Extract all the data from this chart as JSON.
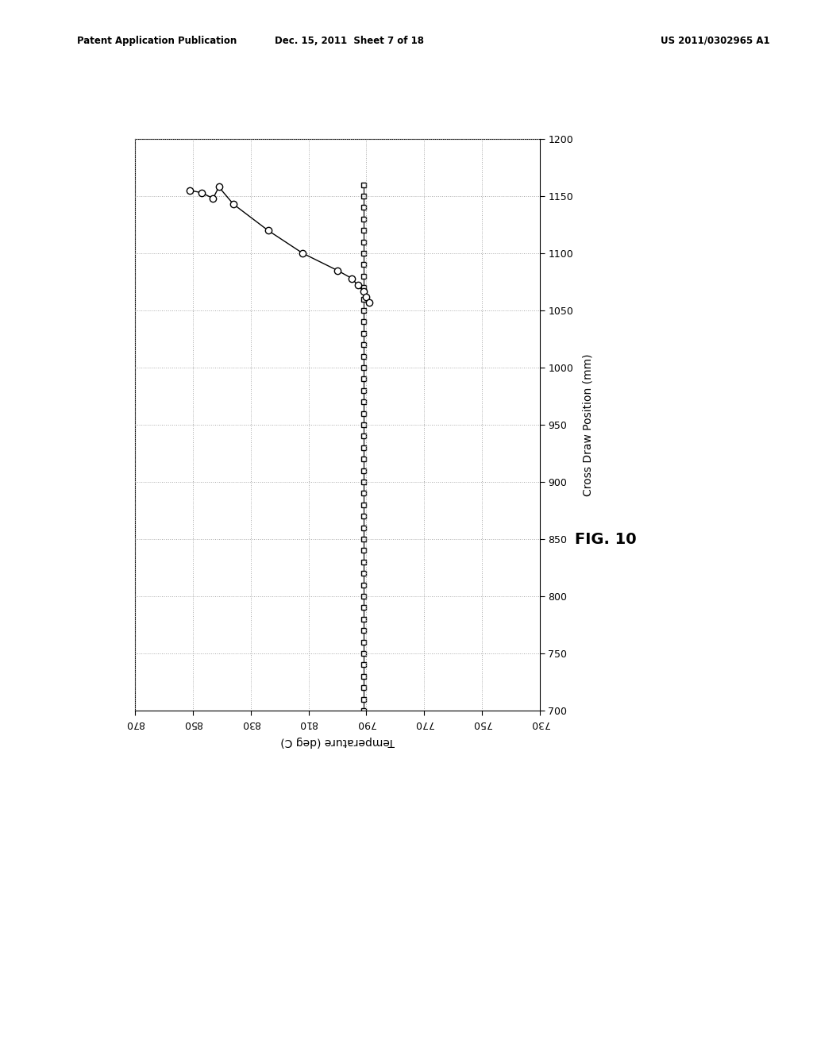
{
  "header_left": "Patent Application Publication",
  "header_mid": "Dec. 15, 2011  Sheet 7 of 18",
  "header_right": "US 2011/0302965 A1",
  "fig_label": "FIG. 10",
  "xlim": [
    730,
    870
  ],
  "ylim": [
    700,
    1200
  ],
  "xticks": [
    730,
    750,
    770,
    790,
    810,
    830,
    850,
    870
  ],
  "yticks": [
    700,
    750,
    800,
    850,
    900,
    950,
    1000,
    1050,
    1100,
    1150,
    1200
  ],
  "circle_data": [
    [
      851,
      1155
    ],
    [
      847,
      1153
    ],
    [
      843,
      1148
    ],
    [
      841,
      1158
    ],
    [
      836,
      1143
    ],
    [
      824,
      1120
    ],
    [
      812,
      1100
    ],
    [
      800,
      1085
    ],
    [
      795,
      1078
    ],
    [
      793,
      1072
    ],
    [
      791,
      1067
    ],
    [
      790,
      1062
    ],
    [
      789,
      1057
    ]
  ],
  "square_data_y": [
    700,
    710,
    720,
    730,
    740,
    750,
    760,
    770,
    780,
    790,
    800,
    810,
    820,
    830,
    840,
    850,
    860,
    870,
    880,
    890,
    900,
    910,
    920,
    930,
    940,
    950,
    960,
    970,
    980,
    990,
    1000,
    1010,
    1020,
    1030,
    1040,
    1050,
    1060,
    1070,
    1080,
    1090,
    1100,
    1110,
    1120,
    1130,
    1140,
    1150,
    1160
  ],
  "square_data_x_val": 791,
  "background_color": "#ffffff",
  "grid_color": "#aaaaaa",
  "line_color": "#000000",
  "marker_color": "#000000",
  "xlabel": "Temperature (deg C)",
  "ylabel": "Cross Draw Position (mm)"
}
